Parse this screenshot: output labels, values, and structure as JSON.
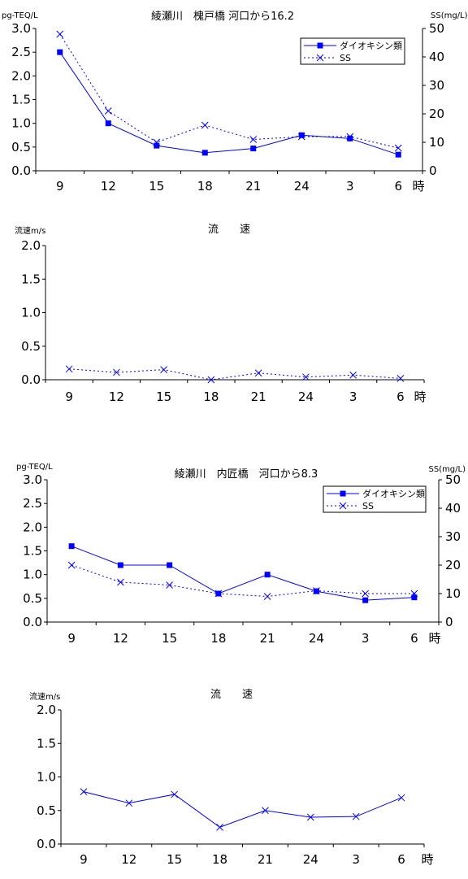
{
  "chart_data": [
    {
      "type": "line",
      "title": "綾瀬川　槐戸橋 河口から16.2",
      "ylabel": "pg-TEQ/L",
      "y2label": "SS(mg/L)",
      "xunit": "時",
      "categories": [
        "9",
        "12",
        "15",
        "18",
        "21",
        "24",
        "3",
        "6"
      ],
      "ylim": [
        0,
        3.0
      ],
      "yticks": [
        "0.0",
        "0.5",
        "1.0",
        "1.5",
        "2.0",
        "2.5",
        "3.0"
      ],
      "y2lim": [
        0,
        50
      ],
      "y2ticks": [
        "0",
        "10",
        "20",
        "30",
        "40",
        "50"
      ],
      "legend_position": "top-right",
      "series": [
        {
          "name": "ダイオキシン類",
          "axis": "left",
          "marker": "square",
          "style": "solid",
          "values": [
            2.5,
            1.0,
            0.53,
            0.38,
            0.47,
            0.75,
            0.68,
            0.34
          ]
        },
        {
          "name": "SS",
          "axis": "right",
          "marker": "x",
          "style": "dotted",
          "values": [
            48,
            21,
            10,
            16,
            11,
            12,
            12,
            8
          ]
        }
      ]
    },
    {
      "type": "line",
      "title": "流　　速",
      "ylabel": "流速m/s",
      "xunit": "時",
      "categories": [
        "9",
        "12",
        "15",
        "18",
        "21",
        "24",
        "3",
        "6"
      ],
      "ylim": [
        0,
        2.0
      ],
      "yticks": [
        "0.0",
        "0.5",
        "1.0",
        "1.5",
        "2.0"
      ],
      "series": [
        {
          "name": "",
          "marker": "x",
          "style": "dotted",
          "values": [
            0.16,
            0.11,
            0.15,
            0.0,
            0.1,
            0.04,
            0.07,
            0.02
          ]
        }
      ]
    },
    {
      "type": "line",
      "title": "綾瀬川　内匠橋　河口から8.3",
      "ylabel": "pg-TEQ/L",
      "y2label": "SS(mg/L)",
      "xunit": "時",
      "categories": [
        "9",
        "12",
        "15",
        "18",
        "21",
        "24",
        "3",
        "6"
      ],
      "ylim": [
        0,
        3.0
      ],
      "yticks": [
        "0.0",
        "0.5",
        "1.0",
        "1.5",
        "2.0",
        "2.5",
        "3.0"
      ],
      "y2lim": [
        0,
        50
      ],
      "y2ticks": [
        "0",
        "10",
        "20",
        "30",
        "40",
        "50"
      ],
      "legend_position": "top-right",
      "series": [
        {
          "name": "ダイオキシン類",
          "axis": "left",
          "marker": "square",
          "style": "solid",
          "values": [
            1.6,
            1.2,
            1.2,
            0.6,
            1.0,
            0.65,
            0.46,
            0.52
          ]
        },
        {
          "name": "SS",
          "axis": "right",
          "marker": "x",
          "style": "dotted",
          "values": [
            20,
            14,
            13,
            10,
            9,
            11,
            10,
            10
          ]
        }
      ]
    },
    {
      "type": "line",
      "title": "流　　速",
      "ylabel": "流速m/s",
      "xunit": "時",
      "categories": [
        "9",
        "12",
        "15",
        "18",
        "21",
        "24",
        "3",
        "6"
      ],
      "ylim": [
        0,
        2.0
      ],
      "yticks": [
        "0.0",
        "0.5",
        "1.0",
        "1.5",
        "2.0"
      ],
      "series": [
        {
          "name": "",
          "marker": "x",
          "style": "solid",
          "values": [
            0.78,
            0.61,
            0.74,
            0.25,
            0.5,
            0.4,
            0.41,
            0.69
          ]
        }
      ]
    }
  ]
}
